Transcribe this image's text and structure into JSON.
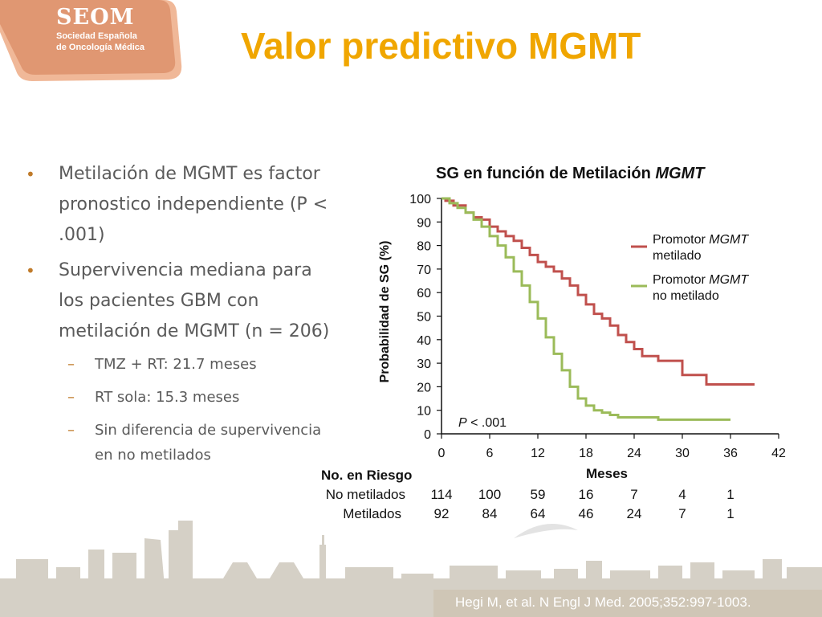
{
  "logo": {
    "name": "SEOM",
    "line1": "Sociedad Española",
    "line2": "de Oncología Médica"
  },
  "title": "Valor predictivo MGMT",
  "bullets": [
    {
      "text": "Metilación de MGMT es factor pronostico independiente (P < .001)"
    },
    {
      "text": "Supervivencia  mediana para los pacientes GBM con metilación de MGMT (n = 206)"
    }
  ],
  "sub_bullets": [
    {
      "text": "TMZ + RT: 21.7 meses"
    },
    {
      "text": "RT sola: 15.3 meses"
    },
    {
      "text": "Sin diferencia de supervivencia en no metilados"
    }
  ],
  "citation": "Hegi M, et al. N Engl J Med. 2005;352:997-1003.",
  "colors": {
    "title": "#f0a600",
    "methylated": "#c0504d",
    "unmethylated": "#9bbb59",
    "bullet": "#c07b2a",
    "text": "#5a5a5a"
  },
  "chart_data": {
    "type": "line",
    "step": true,
    "title_prefix": "SG en función de Metilación ",
    "title_italic": "MGMT",
    "xlabel": "Meses",
    "ylabel": "Probabilidad de SG (%)",
    "xlim": [
      0,
      42
    ],
    "ylim": [
      0,
      100
    ],
    "xticks": [
      0,
      6,
      12,
      18,
      24,
      30,
      36,
      42
    ],
    "yticks": [
      0,
      10,
      20,
      30,
      40,
      50,
      60,
      70,
      80,
      90,
      100
    ],
    "pvalue_italic": "P",
    "pvalue_rest": " < .001",
    "legend_position": "right",
    "series": [
      {
        "name_line1": "Promotor ",
        "name_italic": "MGMT",
        "name_line2": "metilado",
        "color": "#c0504d",
        "x": [
          0,
          0.5,
          1.5,
          3,
          4,
          5,
          6,
          7,
          8,
          9,
          10,
          11,
          12,
          13,
          14,
          15,
          16,
          17,
          18,
          19,
          20,
          21,
          22,
          23,
          24,
          25,
          27,
          30,
          33,
          36,
          39
        ],
        "y": [
          100,
          99,
          97,
          94,
          92,
          91,
          88,
          86,
          84,
          82,
          79,
          76,
          73,
          71,
          69,
          66,
          63,
          59,
          55,
          51,
          49,
          46,
          42,
          39,
          36,
          33,
          31,
          25,
          21,
          21,
          21
        ]
      },
      {
        "name_line1": "Promotor ",
        "name_italic": "MGMT",
        "name_line2": "no metilado",
        "color": "#9bbb59",
        "x": [
          0,
          1,
          2,
          3,
          4,
          5,
          6,
          7,
          8,
          9,
          10,
          11,
          12,
          13,
          14,
          15,
          16,
          17,
          18,
          19,
          20,
          21,
          22,
          24,
          27,
          30,
          33,
          36
        ],
        "y": [
          100,
          98,
          96,
          94,
          91,
          88,
          84,
          80,
          75,
          69,
          63,
          56,
          49,
          41,
          34,
          27,
          20,
          15,
          12,
          10,
          9,
          8,
          7,
          7,
          6,
          6,
          6,
          6
        ]
      }
    ],
    "risk_table": {
      "title": "No. en Riesgo",
      "rows": [
        {
          "label": "No metilados",
          "values": [
            "114",
            "100",
            "59",
            "16",
            "7",
            "4",
            "1"
          ]
        },
        {
          "label": "Metilados",
          "values": [
            "92",
            "84",
            "64",
            "46",
            "24",
            "7",
            "1"
          ]
        }
      ]
    }
  }
}
